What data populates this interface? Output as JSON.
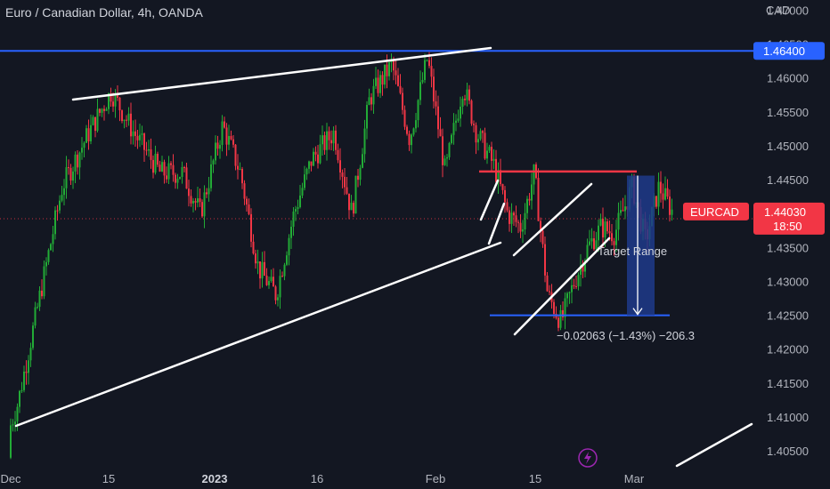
{
  "header": {
    "title": "Euro / Canadian Dollar, 4h, OANDA"
  },
  "chart_data": {
    "type": "candlestick",
    "title": "Euro / Canadian Dollar, 4h, OANDA",
    "symbol": "EURCAD",
    "timeframe": "4h",
    "source": "OANDA",
    "y_axis": {
      "currency_label": "CAD",
      "range": [
        1.402,
        1.4715
      ],
      "ticks": [
        "1.40500",
        "1.41000",
        "1.41500",
        "1.42000",
        "1.42500",
        "1.43000",
        "1.43500",
        "1.44000",
        "1.44500",
        "1.45000",
        "1.45500",
        "1.46000",
        "1.46500",
        "1.47000"
      ]
    },
    "x_axis": {
      "tick_labels": [
        {
          "label": "Dec",
          "bold": false
        },
        {
          "label": "15",
          "bold": false
        },
        {
          "label": "2023",
          "bold": true
        },
        {
          "label": "16",
          "bold": false
        },
        {
          "label": "Feb",
          "bold": false
        },
        {
          "label": "15",
          "bold": false
        },
        {
          "label": "Mar",
          "bold": false
        }
      ]
    },
    "price_tags": {
      "resistance": {
        "value": "1.46400",
        "color": "#2962ff"
      },
      "symbol_label": "EURCAD",
      "last_price": {
        "value": "1.44030",
        "countdown": "18:50",
        "color": "#f23645"
      }
    },
    "horizontal_levels": [
      {
        "price": 1.464,
        "color": "#2962ff",
        "role": "resistance"
      },
      {
        "price": 1.4462,
        "color": "#f23645",
        "role": "range top"
      },
      {
        "price": 1.425,
        "color": "#2962ff",
        "role": "range bottom"
      }
    ],
    "annotations": {
      "target_label": "Target Range",
      "measure_text": "−0.02063 (−1.43%) −206.3",
      "measure_range": [
        1.4456,
        1.425
      ]
    },
    "colors": {
      "background": "#131722",
      "up": "#089981",
      "up_bright": "#22ab36",
      "down": "#f23645",
      "trendline": "#ffffff",
      "measure_fill": "#1e3a8a"
    },
    "path": {
      "description_points": [
        [
          0,
          1.404
        ],
        [
          0.02,
          1.412
        ],
        [
          0.045,
          1.428
        ],
        [
          0.07,
          1.444
        ],
        [
          0.1,
          1.452
        ],
        [
          0.125,
          1.458
        ],
        [
          0.15,
          1.452
        ],
        [
          0.18,
          1.446
        ],
        [
          0.205,
          1.446
        ],
        [
          0.225,
          1.44
        ],
        [
          0.25,
          1.453
        ],
        [
          0.27,
          1.446
        ],
        [
          0.29,
          1.432
        ],
        [
          0.31,
          1.428
        ],
        [
          0.33,
          1.44
        ],
        [
          0.35,
          1.448
        ],
        [
          0.375,
          1.452
        ],
        [
          0.395,
          1.44
        ],
        [
          0.415,
          1.457
        ],
        [
          0.44,
          1.462
        ],
        [
          0.46,
          1.451
        ],
        [
          0.48,
          1.463
        ],
        [
          0.5,
          1.446
        ],
        [
          0.52,
          1.459
        ],
        [
          0.535,
          1.452
        ],
        [
          0.555,
          1.447
        ],
        [
          0.57,
          1.44
        ],
        [
          0.585,
          1.438
        ],
        [
          0.6,
          1.446
        ],
        [
          0.615,
          1.428
        ],
        [
          0.63,
          1.424
        ],
        [
          0.645,
          1.43
        ],
        [
          0.66,
          1.435
        ],
        [
          0.675,
          1.438
        ],
        [
          0.69,
          1.437
        ],
        [
          0.71,
          1.444
        ],
        [
          0.725,
          1.436
        ],
        [
          0.74,
          1.444
        ],
        [
          0.755,
          1.4403
        ]
      ]
    },
    "grid": false,
    "legend": "none"
  }
}
